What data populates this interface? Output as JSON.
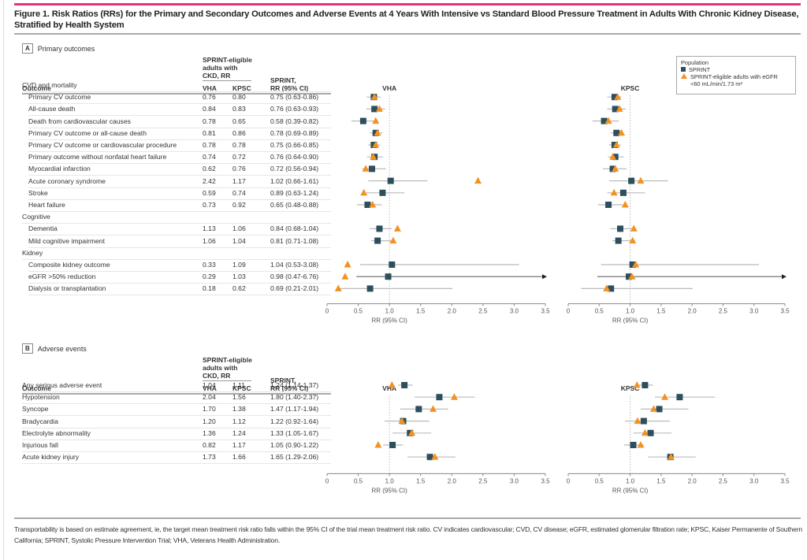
{
  "figure": {
    "title": "Figure 1. Risk Ratios (RRs) for the Primary and Secondary Outcomes and Adverse Events at 4 Years With Intensive vs Standard Blood Pressure Treatment in Adults With Chronic Kidney Disease, Stratified by Health System",
    "footnote": "Transportability is based on estimate agreement, ie, the target mean treatment risk ratio falls within the 95% CI of the trial mean treatment risk ratio. CV indicates cardiovascular; CVD, CV disease; eGFR, estimated glomerular filtration rate; KPSC, Kaiser Permanente of Southern California; SPRINT, Systolic Pressure Intervention Trial; VHA, Veterans Health Administration."
  },
  "legend": {
    "title": "Population",
    "items": [
      {
        "label": "SPRINT",
        "color": "#2d4e5c",
        "shape": "square"
      },
      {
        "label": "SPRINT-eligible adults with eGFR <60 mL/min/1.73 m²",
        "color": "#f39220",
        "shape": "triangle"
      }
    ]
  },
  "headers": {
    "group": "SPRINT-eligible adults with CKD, RR",
    "group_l1": "SPRINT-eligible",
    "group_l2": "adults with",
    "group_l3": "CKD, RR",
    "outcome": "Outcome",
    "vha": "VHA",
    "kpsc": "KPSC",
    "sprint_l1": "SPRINT,",
    "sprint_l2": "RR (95% CI)",
    "plot_vha": "VHA",
    "plot_kpsc": "KPSC",
    "xlabel": "RR (95% CI)"
  },
  "chart_data": [
    {
      "type": "forest",
      "panel": "A",
      "title": "Primary outcomes",
      "xlabel": "RR (95% CI)",
      "xlim": [
        0,
        3.5
      ],
      "xticks": [
        "0",
        "0.5",
        "1.0",
        "1.5",
        "2.0",
        "2.5",
        "3.0",
        "3.5"
      ],
      "reference_line": 1.0,
      "facets": [
        "VHA",
        "KPSC"
      ],
      "series": [
        "SPRINT",
        "SPRINT-eligible adults with eGFR <60 mL/min/1.73 m²"
      ],
      "groups": [
        {
          "name": "CVD and mortality",
          "rows": [
            {
              "outcome": "Primary CV outcome",
              "vha": 0.76,
              "kpsc": 0.8,
              "sprint_rr": 0.75,
              "ci_low": 0.63,
              "ci_high": 0.86,
              "sprint_text": "0.75 (0.63-0.86)"
            },
            {
              "outcome": "All-cause death",
              "vha": 0.84,
              "kpsc": 0.83,
              "sprint_rr": 0.76,
              "ci_low": 0.63,
              "ci_high": 0.93,
              "sprint_text": "0.76 (0.63-0.93)"
            },
            {
              "outcome": "Death from cardiovascular causes",
              "vha": 0.78,
              "kpsc": 0.65,
              "sprint_rr": 0.58,
              "ci_low": 0.39,
              "ci_high": 0.82,
              "sprint_text": "0.58 (0.39-0.82)"
            },
            {
              "outcome": "Primary CV outcome or all-cause death",
              "vha": 0.81,
              "kpsc": 0.86,
              "sprint_rr": 0.78,
              "ci_low": 0.69,
              "ci_high": 0.89,
              "sprint_text": "0.78 (0.69-0.89)"
            },
            {
              "outcome": "Primary CV outcome or cardiovascular procedure",
              "vha": 0.78,
              "kpsc": 0.78,
              "sprint_rr": 0.75,
              "ci_low": 0.66,
              "ci_high": 0.85,
              "sprint_text": "0.75 (0.66-0.85)"
            },
            {
              "outcome": "Primary outcome without nonfatal heart failure",
              "vha": 0.74,
              "kpsc": 0.72,
              "sprint_rr": 0.76,
              "ci_low": 0.64,
              "ci_high": 0.9,
              "sprint_text": "0.76 (0.64-0.90)"
            },
            {
              "outcome": "Myocardial infarction",
              "vha": 0.62,
              "kpsc": 0.76,
              "sprint_rr": 0.72,
              "ci_low": 0.56,
              "ci_high": 0.94,
              "sprint_text": "0.72 (0.56-0.94)"
            },
            {
              "outcome": "Acute coronary syndrome",
              "vha": 2.42,
              "kpsc": 1.17,
              "sprint_rr": 1.02,
              "ci_low": 0.66,
              "ci_high": 1.61,
              "sprint_text": "1.02 (0.66-1.61)"
            },
            {
              "outcome": "Stroke",
              "vha": 0.59,
              "kpsc": 0.74,
              "sprint_rr": 0.89,
              "ci_low": 0.63,
              "ci_high": 1.24,
              "sprint_text": "0.89 (0.63-1.24)"
            },
            {
              "outcome": "Heart failure",
              "vha": 0.73,
              "kpsc": 0.92,
              "sprint_rr": 0.65,
              "ci_low": 0.48,
              "ci_high": 0.88,
              "sprint_text": "0.65 (0.48-0.88)"
            }
          ]
        },
        {
          "name": "Cognitive",
          "rows": [
            {
              "outcome": "Dementia",
              "vha": 1.13,
              "kpsc": 1.06,
              "sprint_rr": 0.84,
              "ci_low": 0.68,
              "ci_high": 1.04,
              "sprint_text": "0.84 (0.68-1.04)"
            },
            {
              "outcome": "Mild cognitive impairment",
              "vha": 1.06,
              "kpsc": 1.04,
              "sprint_rr": 0.81,
              "ci_low": 0.71,
              "ci_high": 1.08,
              "sprint_text": "0.81 (0.71-1.08)"
            }
          ]
        },
        {
          "name": "Kidney",
          "rows": [
            {
              "outcome": "Composite kidney outcome",
              "vha": 0.33,
              "kpsc": 1.09,
              "sprint_rr": 1.04,
              "ci_low": 0.53,
              "ci_high": 3.08,
              "sprint_text": "1.04 (0.53-3.08)"
            },
            {
              "outcome": "eGFR >50% reduction",
              "vha": 0.29,
              "kpsc": 1.03,
              "sprint_rr": 0.98,
              "ci_low": 0.47,
              "ci_high": 6.76,
              "sprint_text": "0.98 (0.47-6.76)"
            },
            {
              "outcome": "Dialysis or transplantation",
              "vha": 0.18,
              "kpsc": 0.62,
              "sprint_rr": 0.69,
              "ci_low": 0.21,
              "ci_high": 2.01,
              "sprint_text": "0.69 (0.21-2.01)"
            }
          ]
        }
      ]
    },
    {
      "type": "forest",
      "panel": "B",
      "title": "Adverse events",
      "xlabel": "RR (95% CI)",
      "xlim": [
        0,
        3.5
      ],
      "xticks": [
        "0",
        "0.5",
        "1.0",
        "1.5",
        "2.0",
        "2.5",
        "3.0",
        "3.5"
      ],
      "reference_line": 1.0,
      "facets": [
        "VHA",
        "KPSC"
      ],
      "series": [
        "SPRINT",
        "SPRINT-eligible adults with eGFR <60 mL/min/1.73 m²"
      ],
      "groups": [
        {
          "name": "",
          "rows": [
            {
              "outcome": "Any serious adverse event",
              "vha": 1.04,
              "kpsc": 1.11,
              "sprint_rr": 1.24,
              "ci_low": 1.14,
              "ci_high": 1.37,
              "sprint_text": "1.24 (1.14-1.37)"
            },
            {
              "outcome": "Hypotension",
              "vha": 2.04,
              "kpsc": 1.56,
              "sprint_rr": 1.8,
              "ci_low": 1.4,
              "ci_high": 2.37,
              "sprint_text": "1.80 (1.40-2.37)"
            },
            {
              "outcome": "Syncope",
              "vha": 1.7,
              "kpsc": 1.38,
              "sprint_rr": 1.47,
              "ci_low": 1.17,
              "ci_high": 1.94,
              "sprint_text": "1.47 (1.17-1.94)"
            },
            {
              "outcome": "Bradycardia",
              "vha": 1.2,
              "kpsc": 1.12,
              "sprint_rr": 1.22,
              "ci_low": 0.92,
              "ci_high": 1.64,
              "sprint_text": "1.22 (0.92-1.64)"
            },
            {
              "outcome": "Electrolyte abnormality",
              "vha": 1.36,
              "kpsc": 1.24,
              "sprint_rr": 1.33,
              "ci_low": 1.05,
              "ci_high": 1.67,
              "sprint_text": "1.33 (1.05-1.67)"
            },
            {
              "outcome": "Injurious fall",
              "vha": 0.82,
              "kpsc": 1.17,
              "sprint_rr": 1.05,
              "ci_low": 0.9,
              "ci_high": 1.22,
              "sprint_text": "1.05 (0.90-1.22)"
            },
            {
              "outcome": "Acute kidney injury",
              "vha": 1.73,
              "kpsc": 1.66,
              "sprint_rr": 1.65,
              "ci_low": 1.29,
              "ci_high": 2.06,
              "sprint_text": "1.65 (1.29-2.06)"
            }
          ]
        }
      ]
    }
  ]
}
